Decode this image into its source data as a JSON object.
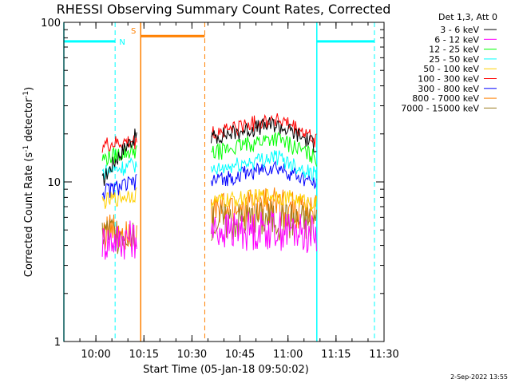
{
  "chart_data": {
    "type": "line",
    "title": "RHESSI Observing Summary Count Rates, Corrected",
    "xlabel": "Start Time (05-Jan-18 09:50:02)",
    "ylabel": "Corrected Count Rate (s⁻¹ detector⁻¹)",
    "ylabel_text": "Corrected Count Rate (s",
    "ylabel_sup1": "-1",
    "ylabel_mid": " detector",
    "ylabel_sup2": "-1",
    "ylabel_end": ")",
    "yscale": "log",
    "ylim": [
      1,
      100
    ],
    "xlim": [
      "09:50",
      "11:30"
    ],
    "xticks": [
      "10:00",
      "10:15",
      "10:30",
      "10:45",
      "11:00",
      "11:15",
      "11:30"
    ],
    "yticks": [
      "1",
      "10",
      "100"
    ],
    "legend_title": "Det 1,3, Att 0",
    "legend_position": "top-right",
    "series": [
      {
        "name": "3 - 6 keV",
        "color": "#000000",
        "seg1": [
          10.0,
          20.0
        ],
        "seg2": [
          19.0,
          23.0,
          17.0
        ]
      },
      {
        "name": "6 - 12 keV",
        "color": "#ff00ff",
        "seg1": [
          4.3,
          4.6
        ],
        "seg2": [
          5.0,
          5.2,
          4.8
        ]
      },
      {
        "name": "12 - 25 keV",
        "color": "#00ff00",
        "seg1": [
          14.0,
          16.0
        ],
        "seg2": [
          15.0,
          19.0,
          14.0
        ]
      },
      {
        "name": "25 - 50 keV",
        "color": "#00ffff",
        "seg1": [
          11.5,
          13.0
        ],
        "seg2": [
          11.5,
          14.5,
          11.0
        ]
      },
      {
        "name": "50 - 100 keV",
        "color": "#ffd000",
        "seg1": [
          7.5,
          8.5
        ],
        "seg2": [
          7.5,
          8.3,
          7.3
        ]
      },
      {
        "name": "100 - 300 keV",
        "color": "#ff0000",
        "seg1": [
          17.0,
          18.0
        ],
        "seg2": [
          20.0,
          25.0,
          18.0
        ]
      },
      {
        "name": "300 - 800 keV",
        "color": "#0000ff",
        "seg1": [
          8.7,
          10.0
        ],
        "seg2": [
          10.0,
          12.5,
          9.5
        ]
      },
      {
        "name": "800 - 7000 keV",
        "color": "#ff8000",
        "seg1": [
          5.0,
          5.2
        ],
        "seg2": [
          6.6,
          7.3,
          6.5
        ]
      },
      {
        "name": "7000 - 15000 keV",
        "color": "#9b7a1e",
        "seg1": [
          4.8,
          5.0
        ],
        "seg2": [
          5.7,
          6.0,
          5.6
        ]
      }
    ],
    "segments": {
      "seg1": [
        "10:02",
        "10:13"
      ],
      "seg2": [
        "10:36",
        "11:09"
      ]
    },
    "flags": [
      {
        "label": "N",
        "color": "#00ffff",
        "ranges": [
          [
            "09:50",
            "10:06"
          ],
          [
            "11:09",
            "11:27"
          ]
        ],
        "dashed_lines": [
          "10:06",
          "11:27"
        ],
        "solid_lines": [
          "09:50",
          "11:09"
        ]
      },
      {
        "label": "S",
        "color": "#ff8000",
        "ranges": [
          [
            "10:14",
            "10:34"
          ]
        ],
        "solid_lines": [
          "10:14"
        ],
        "dashed_lines": [
          "10:34"
        ]
      }
    ],
    "timestamp": "2-Sep-2022 13:55"
  }
}
